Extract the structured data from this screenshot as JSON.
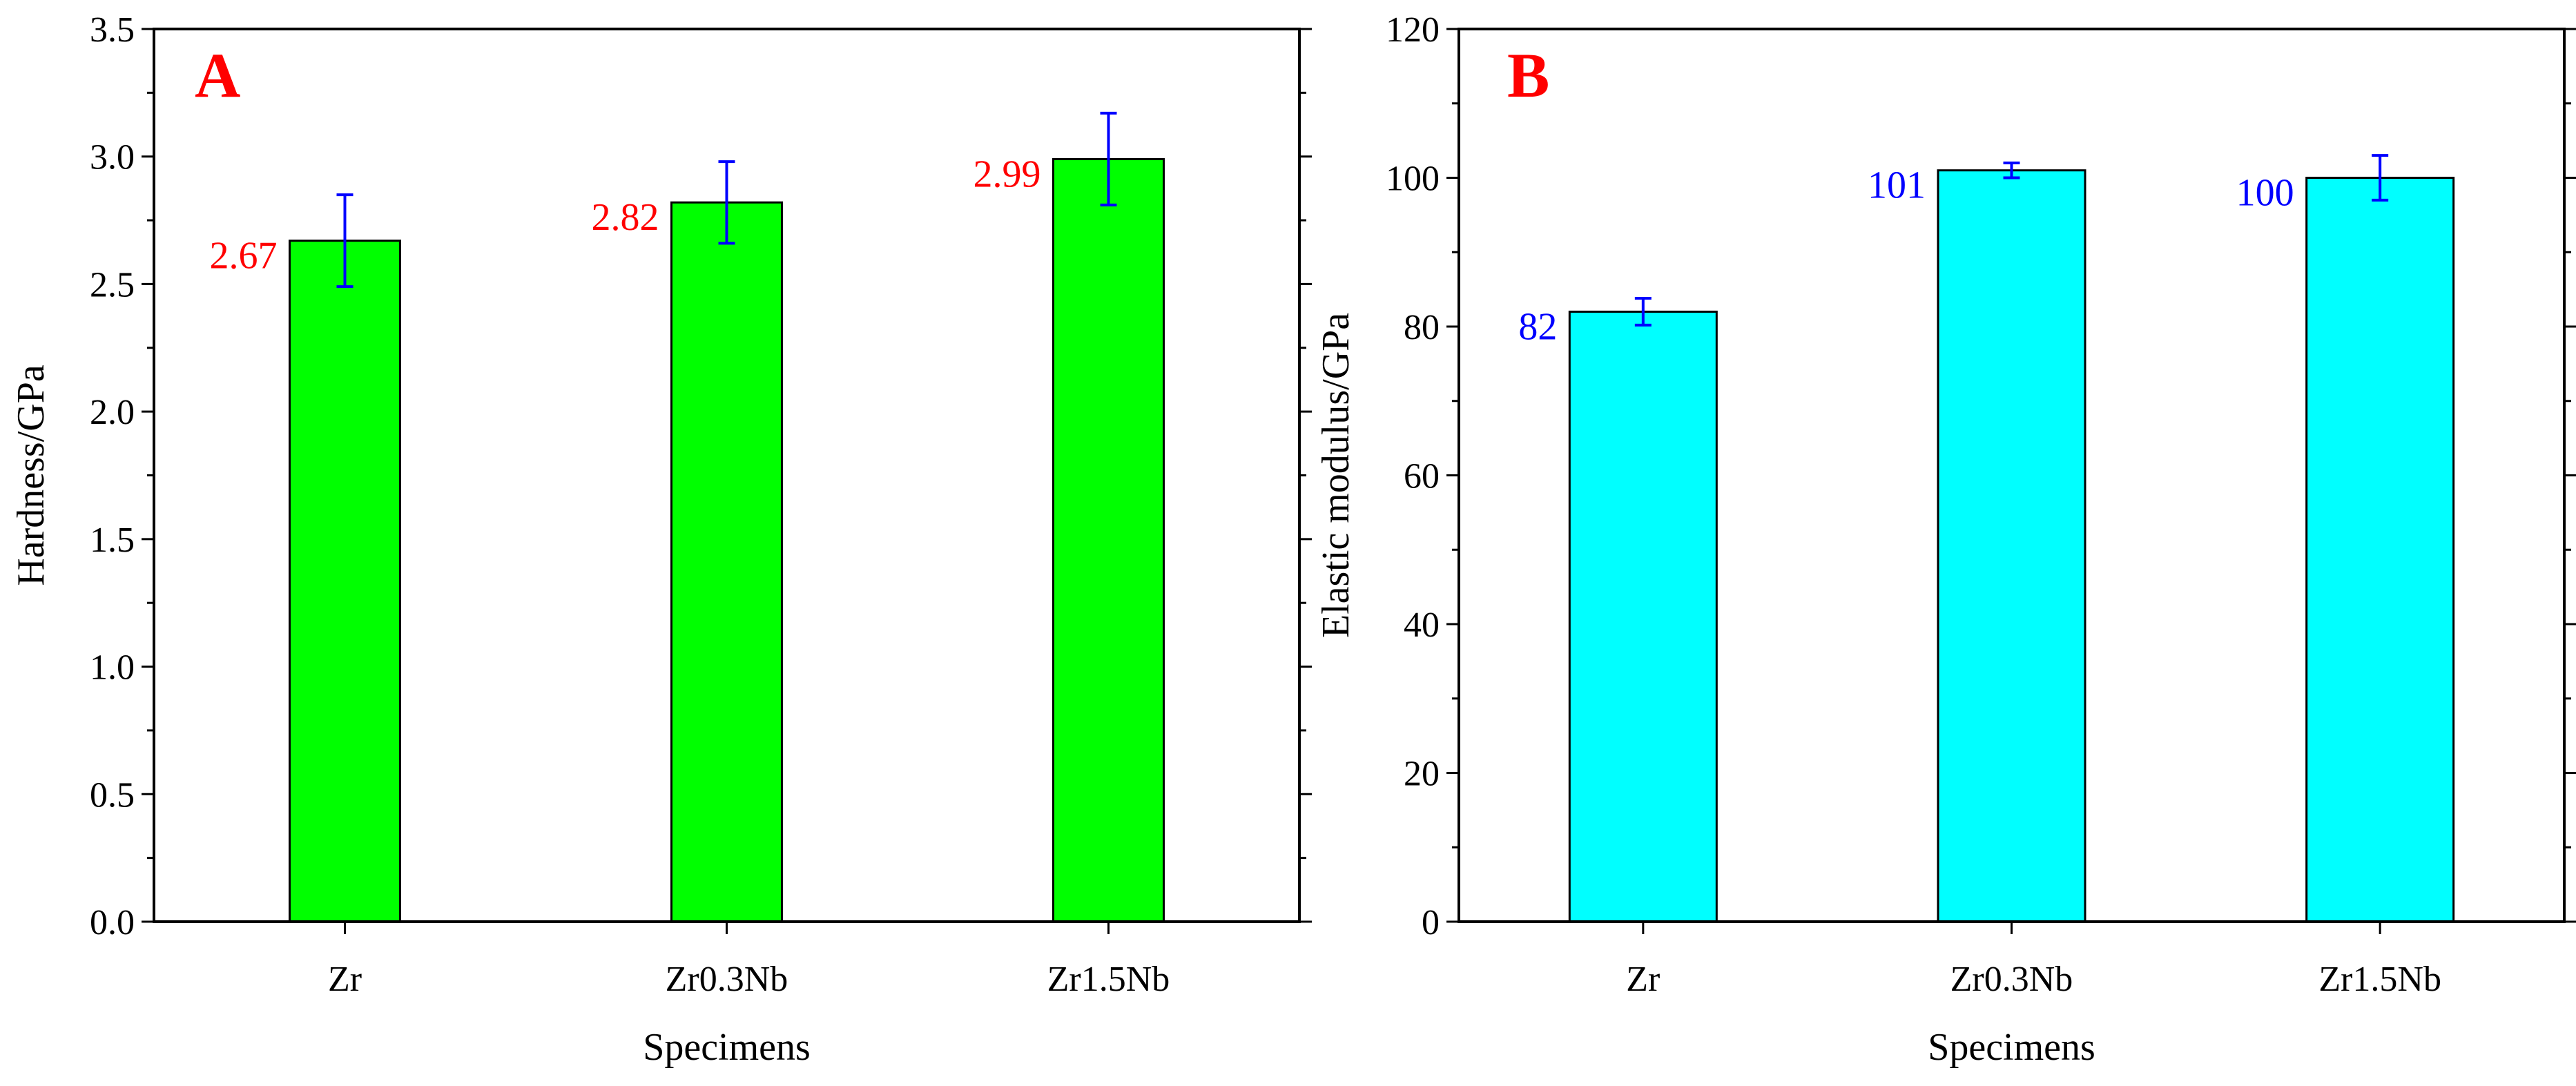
{
  "chart_data": [
    {
      "type": "bar",
      "panel_label": "A",
      "title": "",
      "categories": [
        "Zr",
        "Zr0.3Nb",
        "Zr1.5Nb"
      ],
      "values": [
        2.67,
        2.82,
        2.99
      ],
      "error": [
        0.18,
        0.16,
        0.18
      ],
      "data_labels": [
        "2.67",
        "2.82",
        "2.99"
      ],
      "xlabel": "Specimens",
      "ylabel": "Hardness/GPa",
      "ylim": [
        0,
        3.5
      ],
      "yticks": [
        0.0,
        0.5,
        1.0,
        1.5,
        2.0,
        2.5,
        3.0,
        3.5
      ],
      "ytick_labels": [
        "0.0",
        "0.5",
        "1.0",
        "1.5",
        "2.0",
        "2.5",
        "3.0",
        "3.5"
      ],
      "colors": {
        "bar": "#00ff00",
        "error": "#0000ff",
        "label": "#ff0000",
        "panel": "#ff0000"
      }
    },
    {
      "type": "bar",
      "panel_label": "B",
      "title": "",
      "categories": [
        "Zr",
        "Zr0.3Nb",
        "Zr1.5Nb"
      ],
      "values": [
        82,
        101,
        100
      ],
      "error": [
        1.8,
        1.0,
        3.0
      ],
      "data_labels": [
        "82",
        "101",
        "100"
      ],
      "xlabel": "Specimens",
      "ylabel": "Elastic modulus/GPa",
      "ylim": [
        0,
        120
      ],
      "yticks": [
        0,
        20,
        40,
        60,
        80,
        100,
        120
      ],
      "ytick_labels": [
        "0",
        "20",
        "40",
        "60",
        "80",
        "100",
        "120"
      ],
      "colors": {
        "bar": "#00ffff",
        "error": "#0000ff",
        "label": "#0000ff",
        "panel": "#ff0000"
      }
    }
  ]
}
